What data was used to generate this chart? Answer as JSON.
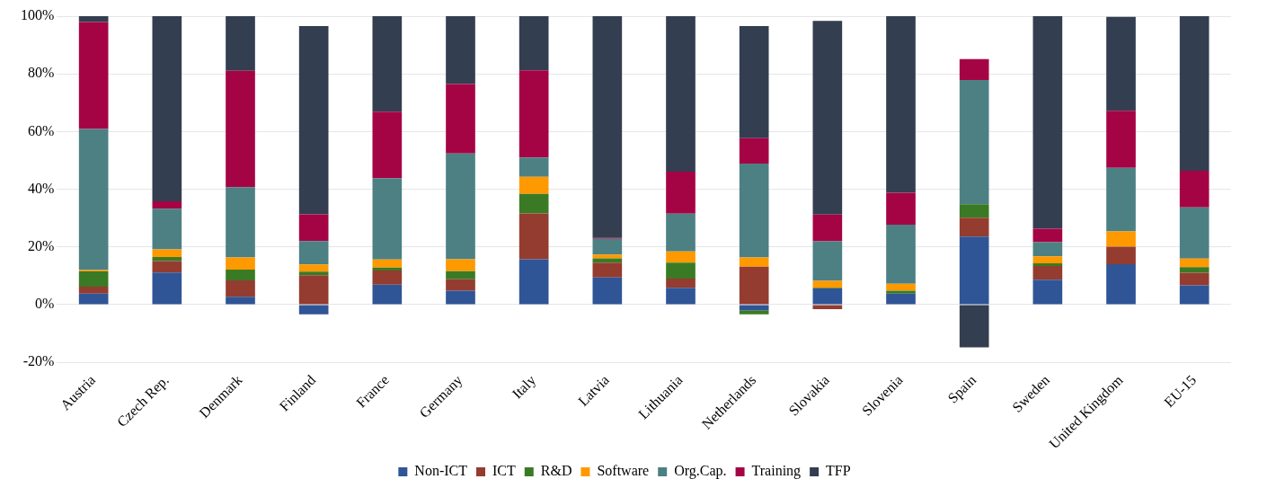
{
  "chart_data": {
    "type": "bar",
    "stacked": true,
    "categories": [
      "Austria",
      "Czech Rep.",
      "Denmark",
      "Finland",
      "France",
      "Germany",
      "Italy",
      "Latvia",
      "Lithuania",
      "Netherlands",
      "Slovakia",
      "Slovenia",
      "Spain",
      "Sweden",
      "United Kingdom",
      "EU-15"
    ],
    "series": [
      {
        "name": "Non-ICT",
        "color": "#2f5597",
        "values": [
          3.8,
          11.1,
          2.7,
          -3.4,
          6.9,
          4.8,
          15.7,
          9.4,
          5.8,
          -2.0,
          5.6,
          3.8,
          23.6,
          8.6,
          14.0,
          6.7
        ]
      },
      {
        "name": "ICT",
        "color": "#943c2f",
        "values": [
          2.4,
          4.0,
          5.7,
          10.2,
          4.9,
          4.0,
          15.9,
          5.1,
          3.2,
          13.1,
          -1.6,
          0,
          6.5,
          4.8,
          6.1,
          4.3
        ]
      },
      {
        "name": "R&D",
        "color": "#3b7a24",
        "values": [
          5.3,
          1.4,
          3.7,
          1.2,
          1.0,
          2.8,
          6.8,
          1.5,
          5.5,
          -1.4,
          0.2,
          1.0,
          4.7,
          0.9,
          null,
          2.0
        ]
      },
      {
        "name": "Software",
        "color": "#ff9900",
        "values": [
          0.5,
          2.6,
          4.2,
          2.5,
          2.8,
          4.1,
          5.9,
          1.3,
          3.9,
          3.2,
          2.4,
          2.4,
          0,
          2.4,
          5.3,
          2.9
        ]
      },
      {
        "name": "Org.Cap.",
        "color": "#4d8083",
        "values": [
          48.9,
          14.1,
          24.4,
          8.1,
          28.2,
          36.7,
          6.7,
          5.5,
          13.1,
          32.6,
          13.7,
          20.5,
          43.1,
          4.9,
          22.0,
          17.8
        ]
      },
      {
        "name": "Training",
        "color": "#a50444",
        "values": [
          37.1,
          2.6,
          40.4,
          9.3,
          23.1,
          24.1,
          30.2,
          0.3,
          14.6,
          8.8,
          9.3,
          11.1,
          7.2,
          4.7,
          19.8,
          12.7
        ]
      },
      {
        "name": "TFP",
        "color": "#333e50",
        "values": [
          2.0,
          64.2,
          18.9,
          65.3,
          33.1,
          23.5,
          18.8,
          76.9,
          53.9,
          38.9,
          67.2,
          61.2,
          -14.8,
          73.7,
          32.6,
          53.6
        ]
      }
    ],
    "ylim": [
      -20,
      100
    ],
    "yticks": [
      {
        "value": -20,
        "label": "-20%"
      },
      {
        "value": 0,
        "label": "0%"
      },
      {
        "value": 20,
        "label": "20%"
      },
      {
        "value": 40,
        "label": "40%"
      },
      {
        "value": 60,
        "label": "60%"
      },
      {
        "value": 80,
        "label": "80%"
      },
      {
        "value": 100,
        "label": "100%"
      }
    ],
    "grid": "y",
    "legend": "bottom"
  }
}
